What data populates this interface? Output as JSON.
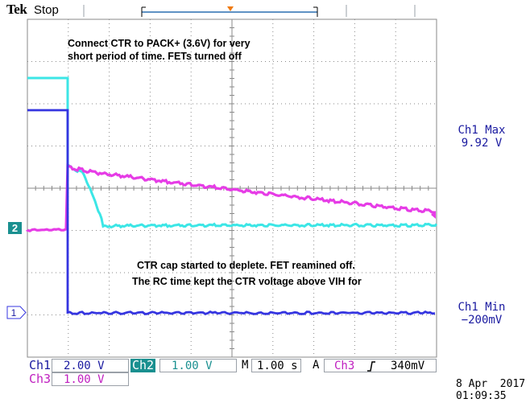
{
  "header": {
    "brand": "Tek",
    "run_state": "Stop"
  },
  "annotations": {
    "top_line1": "Connect CTR to PACK+ (3.6V) for very",
    "top_line2": "short period of time. FETs turned off",
    "mid_line1": "CTR cap started to deplete. FET reamined off.",
    "mid_line2": "The RC time kept the CTR voltage above VIH for"
  },
  "measurements": {
    "max_label": "Ch1 Max",
    "max_value": "9.92 V",
    "min_label": "Ch1 Min",
    "min_value": "−200mV"
  },
  "channels": {
    "ch1_label": "Ch1",
    "ch1_scale": "2.00 V",
    "ch2_label": "Ch2",
    "ch2_scale": "1.00 V",
    "ch3_label": "Ch3",
    "ch3_scale": "1.00 V"
  },
  "horizontal": {
    "label": "M",
    "timebase": "1.00 s"
  },
  "trigger": {
    "label": "A",
    "source": "Ch3",
    "slope_icon": "rising-edge-icon",
    "level": "340mV"
  },
  "markers": {
    "ch1": "1",
    "ch2": "2"
  },
  "datetime": {
    "date": "8 Apr  2017",
    "time": "01:09:35"
  },
  "colors": {
    "ch1": "#3333dd",
    "ch2": "#33e0e0",
    "ch3": "#e23de2",
    "grid": "#808080",
    "text_blue": "#1a1aa0",
    "ch3_text": "#c020c0"
  }
}
